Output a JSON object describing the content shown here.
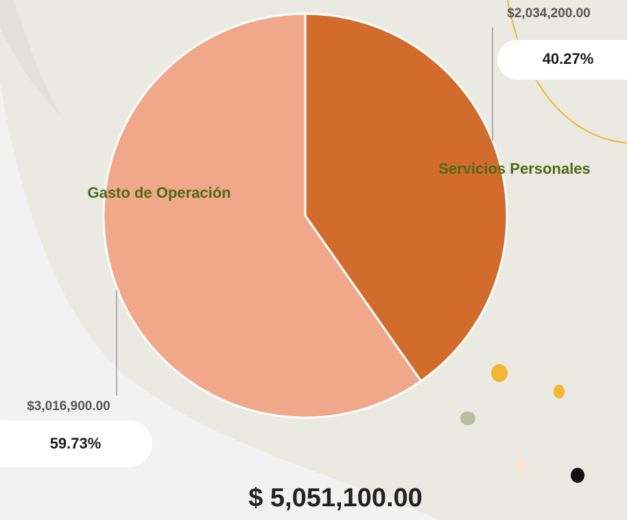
{
  "chart_data": {
    "type": "pie",
    "categories": [
      "Servicios Personales",
      "Gasto de Operación"
    ],
    "values": [
      2034200,
      3016900
    ],
    "value_labels": [
      "$2,034,200.00",
      "$3,016,900.00"
    ],
    "percentage_labels": [
      "40.27%",
      "59.73%"
    ],
    "colors": [
      "#d26c2c",
      "#f0a78a"
    ],
    "total_label": "$ 5,051,100.00"
  }
}
